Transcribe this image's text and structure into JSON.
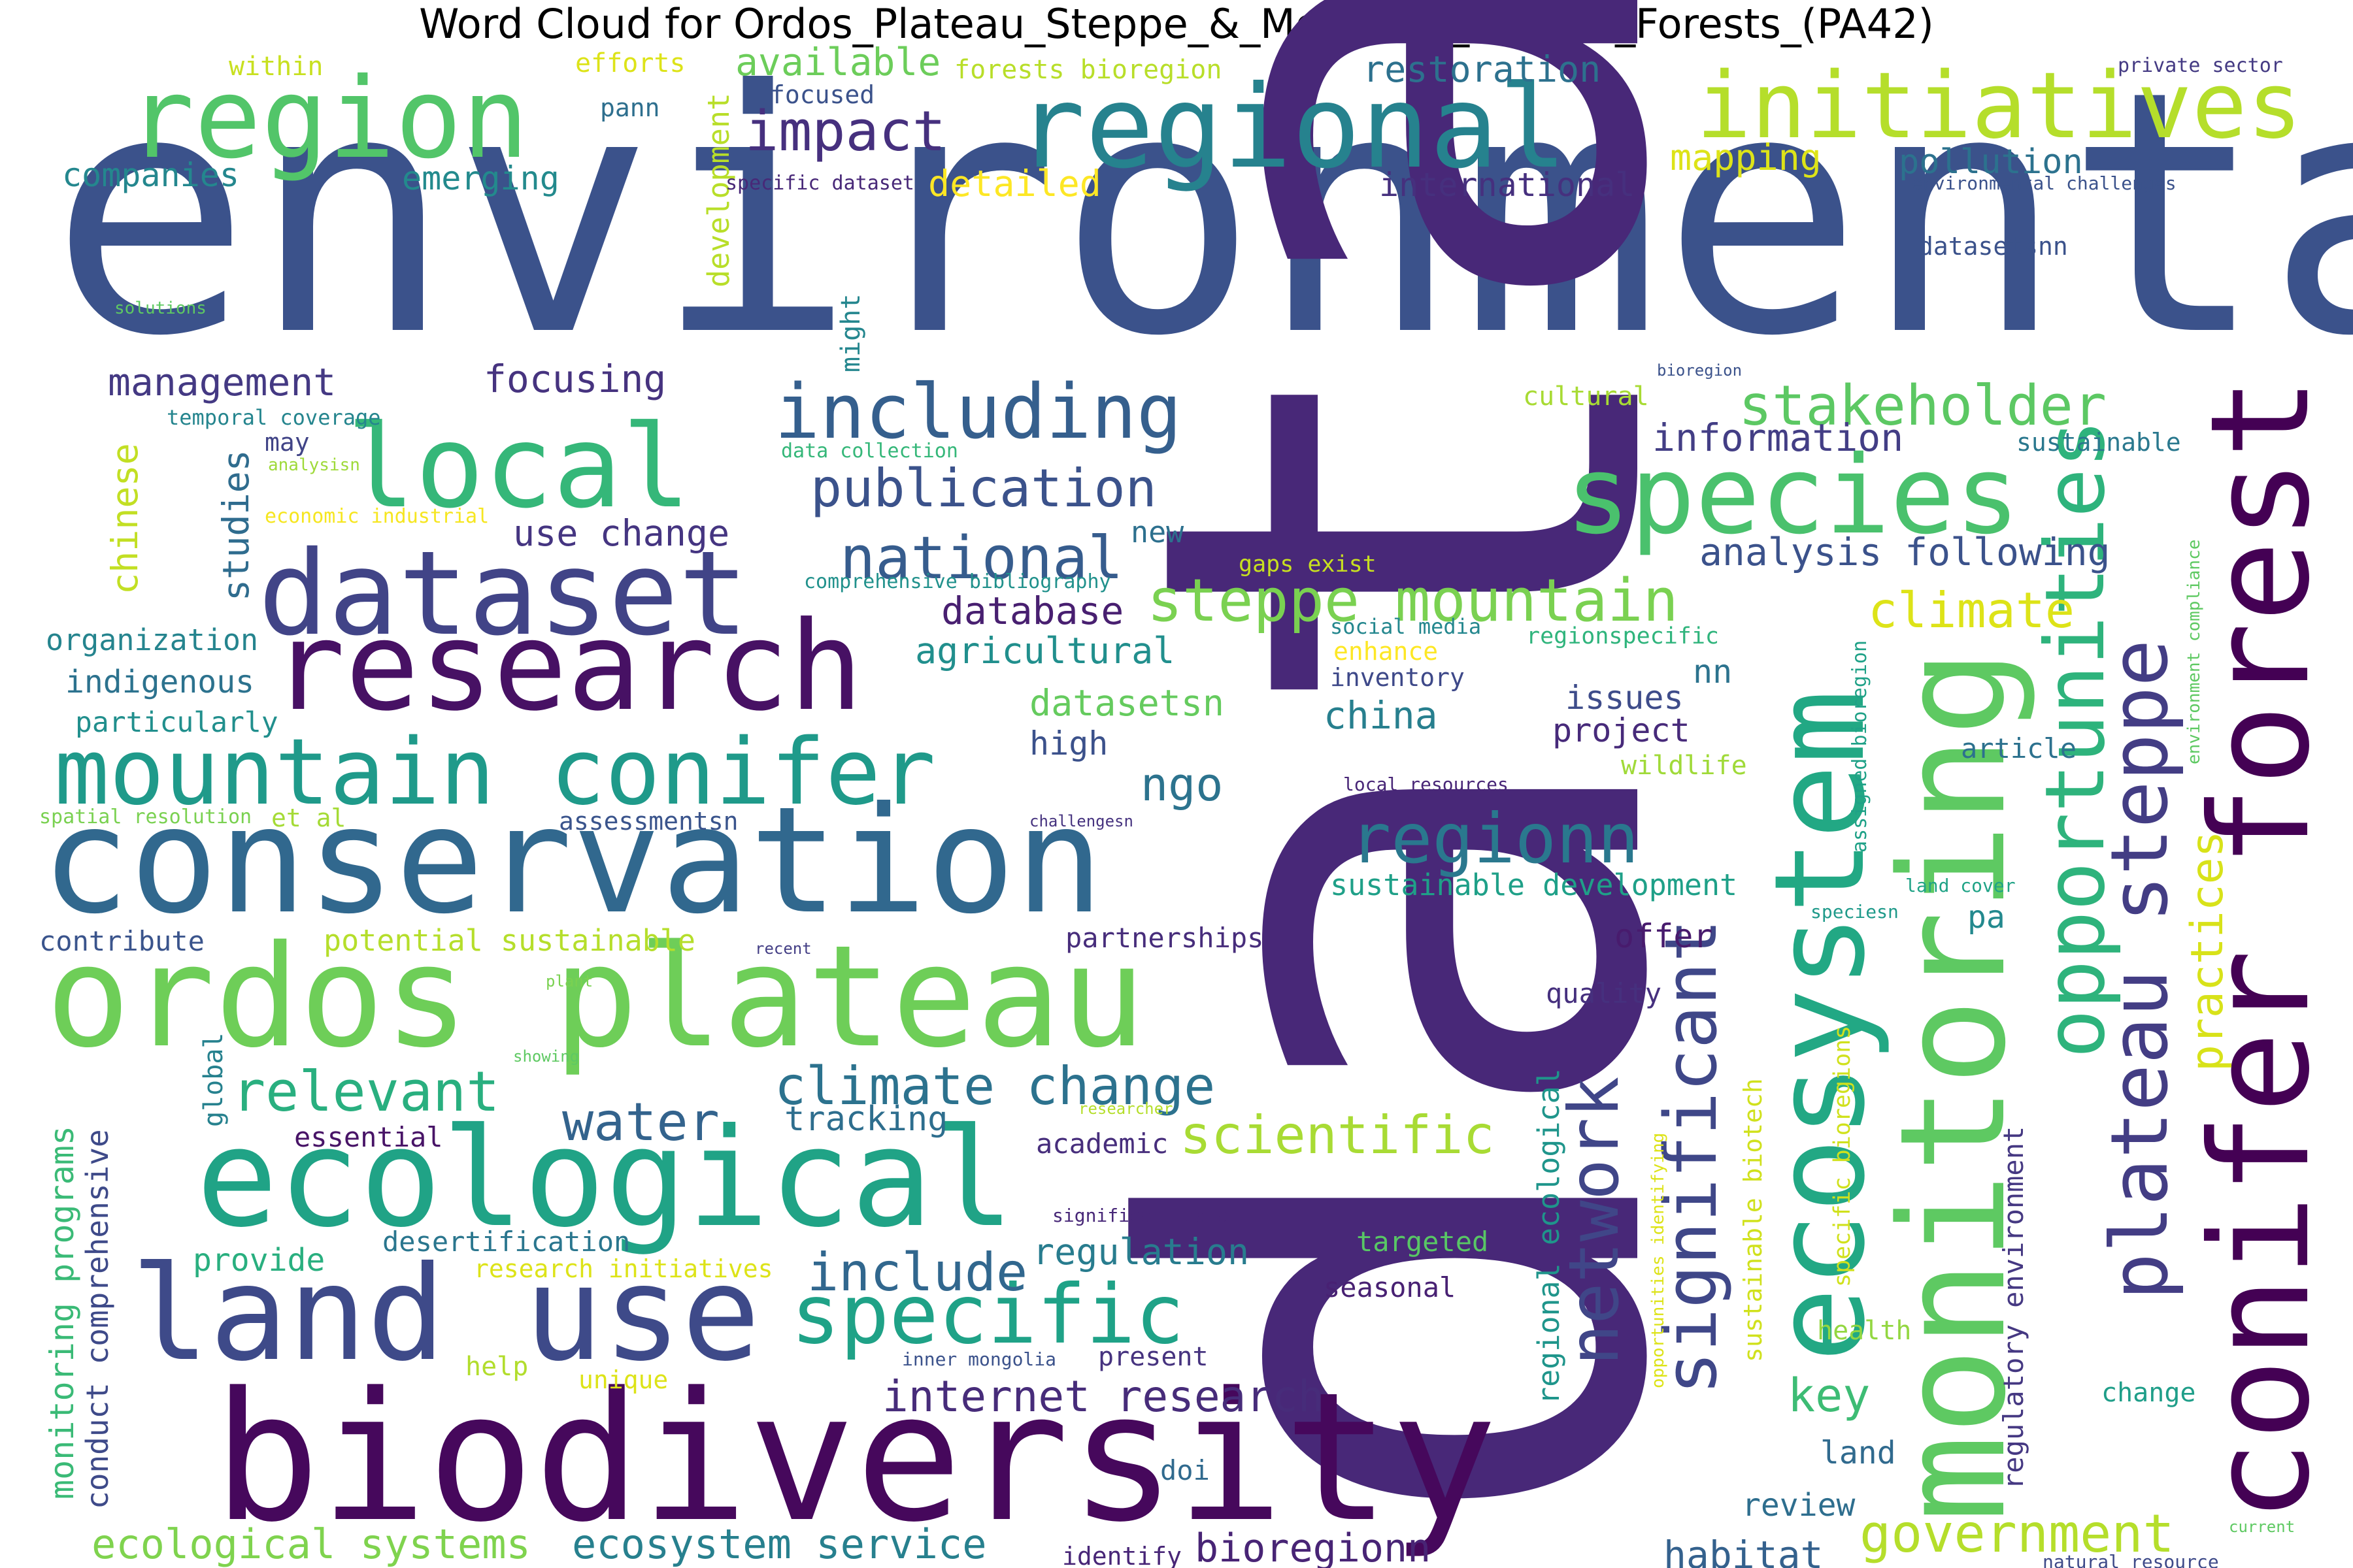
{
  "chart_data": {
    "type": "wordcloud",
    "title": "Word Cloud for Ordos_Plateau_Steppe_&_Mountain_Conifer_Forests_(PA42)",
    "colormap": "viridis",
    "background": "#ffffff",
    "words": [
      {
        "text": "environmental",
        "weight": 100,
        "color": "#3b528b",
        "rotate": 0
      },
      {
        "text": "data",
        "weight": 96,
        "color": "#482878",
        "rotate": -90
      },
      {
        "text": "biodiversity",
        "weight": 52,
        "color": "#46085c",
        "rotate": 0
      },
      {
        "text": "conservation",
        "weight": 42,
        "color": "#31688e",
        "rotate": 0
      },
      {
        "text": "monitoring",
        "weight": 41,
        "color": "#5ec962",
        "rotate": -90
      },
      {
        "text": "ordos plateau",
        "weight": 40,
        "color": "#6ece58",
        "rotate": 0
      },
      {
        "text": "conifer forest",
        "weight": 39,
        "color": "#440154",
        "rotate": -90
      },
      {
        "text": "ecological",
        "weight": 39,
        "color": "#20a386",
        "rotate": 0
      },
      {
        "text": "land use",
        "weight": 38,
        "color": "#3e4a89",
        "rotate": 0
      },
      {
        "text": "ecosystem",
        "weight": 36,
        "color": "#22a884",
        "rotate": -90
      },
      {
        "text": "research",
        "weight": 35,
        "color": "#471164",
        "rotate": 0
      },
      {
        "text": "dataset",
        "weight": 34,
        "color": "#414487",
        "rotate": 0
      },
      {
        "text": "local",
        "weight": 33,
        "color": "#35b779",
        "rotate": 0
      },
      {
        "text": "regional",
        "weight": 33,
        "color": "#26828e",
        "rotate": 0
      },
      {
        "text": "region",
        "weight": 32,
        "color": "#52c569",
        "rotate": 0
      },
      {
        "text": "species",
        "weight": 31,
        "color": "#4ac16d",
        "rotate": 0
      },
      {
        "text": "initiatives",
        "weight": 27,
        "color": "#b5de2b",
        "rotate": 0
      },
      {
        "text": "mountain conifer",
        "weight": 26,
        "color": "#1f9a8a",
        "rotate": 0
      },
      {
        "text": "opportunities",
        "weight": 24,
        "color": "#2eb37c",
        "rotate": -90
      },
      {
        "text": "specific",
        "weight": 23,
        "color": "#1fa287",
        "rotate": 0
      },
      {
        "text": "plateau steppe",
        "weight": 23,
        "color": "#433d84",
        "rotate": -90
      },
      {
        "text": "including",
        "weight": 22,
        "color": "#355f8d",
        "rotate": 0
      },
      {
        "text": "significant",
        "weight": 21,
        "color": "#3f4788",
        "rotate": -90
      },
      {
        "text": "network",
        "weight": 20,
        "color": "#404688",
        "rotate": -90
      },
      {
        "text": "regionn",
        "weight": 20,
        "color": "#2a788e",
        "rotate": 0
      },
      {
        "text": "national",
        "weight": 17,
        "color": "#365c8d",
        "rotate": 0
      },
      {
        "text": "steppe mountain",
        "weight": 17,
        "color": "#7ad151",
        "rotate": 0
      },
      {
        "text": "stakeholder",
        "weight": 16,
        "color": "#5cc863",
        "rotate": 0
      },
      {
        "text": "impact",
        "weight": 16,
        "color": "#46307e",
        "rotate": 0
      },
      {
        "text": "relevant",
        "weight": 16,
        "color": "#29af7f",
        "rotate": 0
      },
      {
        "text": "climate change",
        "weight": 16,
        "color": "#2c728e",
        "rotate": 0
      },
      {
        "text": "scientific",
        "weight": 16,
        "color": "#a8db34",
        "rotate": 0
      },
      {
        "text": "include",
        "weight": 15,
        "color": "#31678e",
        "rotate": 0
      },
      {
        "text": "government",
        "weight": 15,
        "color": "#b5de2b",
        "rotate": 0
      },
      {
        "text": "publication",
        "weight": 15,
        "color": "#3b528b",
        "rotate": 0
      },
      {
        "text": "water",
        "weight": 15,
        "color": "#33638d",
        "rotate": 0
      },
      {
        "text": "climate",
        "weight": 14,
        "color": "#dde318",
        "rotate": 0
      },
      {
        "text": "practices",
        "weight": 13,
        "color": "#d8e219",
        "rotate": -90
      },
      {
        "text": "internet research",
        "weight": 13,
        "color": "#472c7a",
        "rotate": 0
      },
      {
        "text": "key",
        "weight": 13,
        "color": "#3dbc74",
        "rotate": 0
      },
      {
        "text": "ngo",
        "weight": 13,
        "color": "#2c738e",
        "rotate": 0
      },
      {
        "text": "ecological systems",
        "weight": 12,
        "color": "#7fd34e",
        "rotate": 0
      },
      {
        "text": "ecosystem service",
        "weight": 12,
        "color": "#27808e",
        "rotate": 0
      },
      {
        "text": "bioregionn",
        "weight": 11,
        "color": "#482475",
        "rotate": 0
      },
      {
        "text": "available",
        "weight": 11,
        "color": "#6ccd5a",
        "rotate": 0
      },
      {
        "text": "management",
        "weight": 11,
        "color": "#443983",
        "rotate": 0
      },
      {
        "text": "restoration",
        "weight": 11,
        "color": "#2d718e",
        "rotate": 0
      },
      {
        "text": "focusing",
        "weight": 11,
        "color": "#46337f",
        "rotate": 0
      },
      {
        "text": "information",
        "weight": 11,
        "color": "#433e85",
        "rotate": 0
      },
      {
        "text": "analysis following",
        "weight": 11,
        "color": "#3b528b",
        "rotate": 0
      },
      {
        "text": "database",
        "weight": 11,
        "color": "#481f70",
        "rotate": 0
      },
      {
        "text": "agricultural",
        "weight": 11,
        "color": "#218f8d",
        "rotate": 0
      },
      {
        "text": "datasetsn",
        "weight": 11,
        "color": "#65cb5e",
        "rotate": 0
      },
      {
        "text": "china",
        "weight": 11,
        "color": "#277f8e",
        "rotate": 0
      },
      {
        "text": "use change",
        "weight": 11,
        "color": "#453581",
        "rotate": 0
      },
      {
        "text": "regulation",
        "weight": 11,
        "color": "#287c8e",
        "rotate": 0
      },
      {
        "text": "tracking",
        "weight": 11,
        "color": "#2e6e8e",
        "rotate": 0
      },
      {
        "text": "habitat",
        "weight": 11,
        "color": "#34618d",
        "rotate": 0
      },
      {
        "text": "mapping",
        "weight": 11,
        "color": "#dde318",
        "rotate": 0
      },
      {
        "text": "detailed",
        "weight": 11,
        "color": "#fde725",
        "rotate": 0
      },
      {
        "text": "pollution",
        "weight": 11,
        "color": "#2c728e",
        "rotate": 0
      },
      {
        "text": "international",
        "weight": 11,
        "color": "#46307e",
        "rotate": 0
      },
      {
        "text": "companies",
        "weight": 11,
        "color": "#24878e",
        "rotate": 0
      },
      {
        "text": "emerging",
        "weight": 11,
        "color": "#238a8d",
        "rotate": 0
      },
      {
        "text": "studies",
        "weight": 11,
        "color": "#2f6c8e",
        "rotate": -90
      },
      {
        "text": "chinese",
        "weight": 11,
        "color": "#c2df23",
        "rotate": -90
      },
      {
        "text": "organization",
        "weight": 10,
        "color": "#25848e",
        "rotate": 0
      },
      {
        "text": "indigenous",
        "weight": 10,
        "color": "#2c728e",
        "rotate": 0
      },
      {
        "text": "particularly",
        "weight": 10,
        "color": "#218f8d",
        "rotate": 0
      },
      {
        "text": "issues",
        "weight": 10,
        "color": "#3e4c8a",
        "rotate": 0
      },
      {
        "text": "project",
        "weight": 10,
        "color": "#472a7a",
        "rotate": 0
      },
      {
        "text": "high",
        "weight": 10,
        "color": "#3b518b",
        "rotate": 0
      },
      {
        "text": "offer",
        "weight": 10,
        "color": "#481b6d",
        "rotate": 0
      },
      {
        "text": "pa",
        "weight": 10,
        "color": "#23898e",
        "rotate": 0
      },
      {
        "text": "nn",
        "weight": 10,
        "color": "#2c738e",
        "rotate": 0
      },
      {
        "text": "sustainable development",
        "weight": 10,
        "color": "#1fa088",
        "rotate": 0
      },
      {
        "text": "potential sustainable",
        "weight": 10,
        "color": "#b5de2b",
        "rotate": 0
      },
      {
        "text": "contribute",
        "weight": 10,
        "color": "#3a548c",
        "rotate": 0
      },
      {
        "text": "partnerships",
        "weight": 10,
        "color": "#472d7b",
        "rotate": 0
      },
      {
        "text": "monitoring programs",
        "weight": 10,
        "color": "#3aba76",
        "rotate": -90
      },
      {
        "text": "conduct comprehensive",
        "weight": 10,
        "color": "#3e4a89",
        "rotate": -90
      },
      {
        "text": "regional ecological",
        "weight": 10,
        "color": "#1f958b",
        "rotate": -90
      },
      {
        "text": "regulatory environment",
        "weight": 10,
        "color": "#453882",
        "rotate": -90
      },
      {
        "text": "sustainable biotech",
        "weight": 9,
        "color": "#d0e11c",
        "rotate": -90
      },
      {
        "text": "development",
        "weight": 9,
        "color": "#b8de29",
        "rotate": -90
      },
      {
        "text": "new",
        "weight": 9,
        "color": "#2d708e",
        "rotate": 0
      },
      {
        "text": "review",
        "weight": 9,
        "color": "#2e6e8e",
        "rotate": 0
      },
      {
        "text": "land",
        "weight": 9,
        "color": "#306a8e",
        "rotate": 0
      },
      {
        "text": "provide",
        "weight": 9,
        "color": "#29af7f",
        "rotate": 0
      },
      {
        "text": "essential",
        "weight": 9,
        "color": "#481467",
        "rotate": 0
      },
      {
        "text": "desertification",
        "weight": 9,
        "color": "#2a768e",
        "rotate": 0
      },
      {
        "text": "academic",
        "weight": 9,
        "color": "#472e7c",
        "rotate": 0
      },
      {
        "text": "wildlife",
        "weight": 9,
        "color": "#a0da39",
        "rotate": 0
      },
      {
        "text": "article",
        "weight": 9,
        "color": "#2c718e",
        "rotate": 0
      },
      {
        "text": "quality",
        "weight": 9,
        "color": "#46307e",
        "rotate": 0
      },
      {
        "text": "seasonal",
        "weight": 9,
        "color": "#482173",
        "rotate": 0
      },
      {
        "text": "targeted",
        "weight": 9,
        "color": "#58c765",
        "rotate": 0
      },
      {
        "text": "present",
        "weight": 9,
        "color": "#46337f",
        "rotate": 0
      },
      {
        "text": "identify",
        "weight": 9,
        "color": "#482677",
        "rotate": 0
      },
      {
        "text": "doi",
        "weight": 9,
        "color": "#306a8e",
        "rotate": 0
      },
      {
        "text": "change",
        "weight": 9,
        "color": "#1f9e89",
        "rotate": 0
      },
      {
        "text": "health",
        "weight": 9,
        "color": "#93d741",
        "rotate": 0
      },
      {
        "text": "unique",
        "weight": 9,
        "color": "#dde318",
        "rotate": 0
      },
      {
        "text": "help",
        "weight": 9,
        "color": "#b2dd2d",
        "rotate": 0
      },
      {
        "text": "global",
        "weight": 9,
        "color": "#26818e",
        "rotate": -90
      },
      {
        "text": "cultural",
        "weight": 9,
        "color": "#a8db34",
        "rotate": 0
      },
      {
        "text": "sustainable",
        "weight": 9,
        "color": "#2a788e",
        "rotate": 0
      },
      {
        "text": "enhance",
        "weight": 9,
        "color": "#fde725",
        "rotate": 0
      },
      {
        "text": "inventory",
        "weight": 9,
        "color": "#3e4989",
        "rotate": 0
      },
      {
        "text": "et al",
        "weight": 9,
        "color": "#a5db36",
        "rotate": 0
      },
      {
        "text": "assessmentsn",
        "weight": 9,
        "color": "#3a548c",
        "rotate": 0
      },
      {
        "text": "research initiatives",
        "weight": 8,
        "color": "#dde318",
        "rotate": 0
      },
      {
        "text": "within",
        "weight": 8,
        "color": "#c8e020",
        "rotate": 0
      },
      {
        "text": "efforts",
        "weight": 8,
        "color": "#dde318",
        "rotate": 0
      },
      {
        "text": "pann",
        "weight": 8,
        "color": "#2e6f8e",
        "rotate": 0
      },
      {
        "text": "forests bioregion",
        "weight": 8,
        "color": "#b8de29",
        "rotate": 0
      },
      {
        "text": "focused",
        "weight": 8,
        "color": "#3b528b",
        "rotate": 0
      },
      {
        "text": "might",
        "weight": 8,
        "color": "#24868e",
        "rotate": -90
      },
      {
        "text": "may",
        "weight": 8,
        "color": "#414487",
        "rotate": 0
      },
      {
        "text": "datasetsnn",
        "weight": 8,
        "color": "#3b528b",
        "rotate": 0
      },
      {
        "text": "specific bioregions",
        "weight": 8,
        "color": "#d0e11c",
        "rotate": -90
      },
      {
        "text": "assigned bioregion",
        "weight": 7,
        "color": "#1fa187",
        "rotate": -90
      },
      {
        "text": "gaps exist",
        "weight": 7,
        "color": "#c8e020",
        "rotate": 0
      },
      {
        "text": "social media",
        "weight": 6,
        "color": "#24878e",
        "rotate": 0
      },
      {
        "text": "regionspecific",
        "weight": 6,
        "color": "#2fb47c",
        "rotate": 0
      },
      {
        "text": "comprehensive bibliography",
        "weight": 6,
        "color": "#21918c",
        "rotate": 0
      },
      {
        "text": "data collection",
        "weight": 6,
        "color": "#35b779",
        "rotate": 0
      },
      {
        "text": "specific dataset",
        "weight": 6,
        "color": "#482878",
        "rotate": 0
      },
      {
        "text": "private sector",
        "weight": 6,
        "color": "#443a83",
        "rotate": 0
      },
      {
        "text": "environmental challenges",
        "weight": 6,
        "color": "#3b528b",
        "rotate": 0
      },
      {
        "text": "temporal coverage",
        "weight": 6,
        "color": "#25858e",
        "rotate": 0
      },
      {
        "text": "economic industrial",
        "weight": 6,
        "color": "#f6e620",
        "rotate": 0
      },
      {
        "text": "spatial resolution",
        "weight": 6,
        "color": "#7ad151",
        "rotate": 0
      },
      {
        "text": "local resources",
        "weight": 5,
        "color": "#482677",
        "rotate": 0
      },
      {
        "text": "environment compliance",
        "weight": 5,
        "color": "#5ec962",
        "rotate": -90
      },
      {
        "text": "opportunities identifying",
        "weight": 5,
        "color": "#dde318",
        "rotate": -90
      },
      {
        "text": "inner mongolia",
        "weight": 5,
        "color": "#3b528b",
        "rotate": 0
      },
      {
        "text": "significant data",
        "weight": 5,
        "color": "#482878",
        "rotate": 0
      },
      {
        "text": "natural resource",
        "weight": 5,
        "color": "#3e4a89",
        "rotate": 0
      },
      {
        "text": "land cover",
        "weight": 5,
        "color": "#20a386",
        "rotate": 0
      },
      {
        "text": "speciesn",
        "weight": 5,
        "color": "#1f9a8a",
        "rotate": 0
      },
      {
        "text": "challengesn",
        "weight": 4,
        "color": "#46337f",
        "rotate": 0
      },
      {
        "text": "analysisn",
        "weight": 4,
        "color": "#9fda3a",
        "rotate": 0
      },
      {
        "text": "solutions",
        "weight": 4,
        "color": "#5ec962",
        "rotate": 0
      },
      {
        "text": "bioregion",
        "weight": 4,
        "color": "#3b528b",
        "rotate": 0
      },
      {
        "text": "recent",
        "weight": 4,
        "color": "#433e85",
        "rotate": 0
      },
      {
        "text": "plant",
        "weight": 4,
        "color": "#7ad151",
        "rotate": 0
      },
      {
        "text": "showing",
        "weight": 4,
        "color": "#5ec962",
        "rotate": 0
      },
      {
        "text": "researcher",
        "weight": 4,
        "color": "#b5de2b",
        "rotate": 0
      },
      {
        "text": "current",
        "weight": 4,
        "color": "#5ec962",
        "rotate": 0
      }
    ]
  }
}
